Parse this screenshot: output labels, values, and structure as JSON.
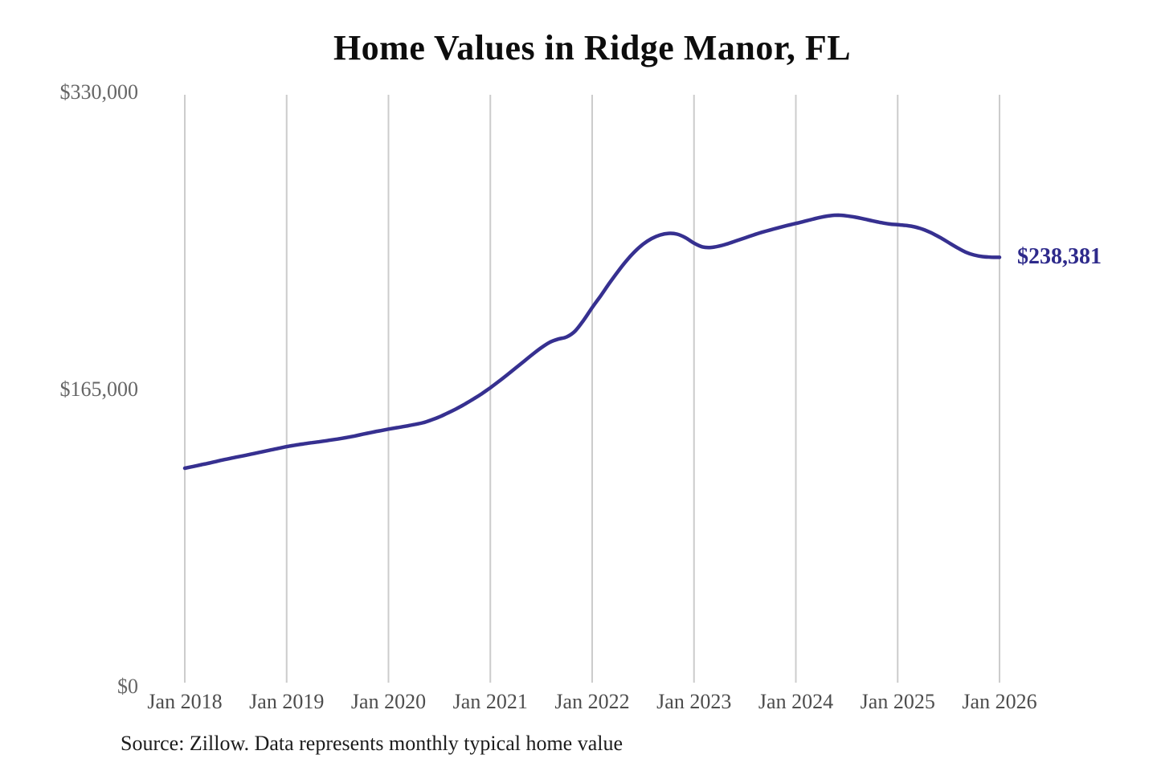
{
  "title": "Home Values in Ridge Manor, FL",
  "end_label": "$238,381",
  "source_note": "Source: Zillow. Data represents monthly typical home value",
  "colors": {
    "line": "#363090",
    "end_label": "#2e2a8b",
    "gridline": "#cccccc",
    "y_tick_label": "#666666",
    "x_tick_label": "#4d4d4d",
    "title": "#0d0d0d",
    "source": "#1c1c1c",
    "background": "#ffffff"
  },
  "chart_data": {
    "type": "line",
    "title": "Home Values in Ridge Manor, FL",
    "series_name": "Typical home value (monthly)",
    "x_start": "Jan 2018",
    "x_end": "Jan 2026",
    "frequency": "monthly",
    "x_tick_labels": [
      "Jan 2018",
      "Jan 2019",
      "Jan 2020",
      "Jan 2021",
      "Jan 2022",
      "Jan 2023",
      "Jan 2024",
      "Jan 2025",
      "Jan 2026"
    ],
    "y_tick_labels": [
      "$0",
      "$165,000",
      "$330,000"
    ],
    "y_ticks": [
      0,
      165000,
      330000
    ],
    "ylim": [
      0,
      330000
    ],
    "grid": "vertical-only",
    "legend": "none",
    "last_value": 238381,
    "last_value_label": "$238,381",
    "values": [
      121300,
      122300,
      123300,
      124300,
      125400,
      126400,
      127400,
      128300,
      129300,
      130300,
      131300,
      132300,
      133300,
      134100,
      134800,
      135500,
      136100,
      136800,
      137500,
      138300,
      139200,
      140200,
      141200,
      142100,
      143000,
      143800,
      144600,
      145500,
      146500,
      148000,
      149800,
      152000,
      154300,
      156900,
      159700,
      162700,
      166000,
      169500,
      173200,
      177000,
      180800,
      184600,
      188200,
      191200,
      193000,
      194200,
      197500,
      203500,
      210500,
      217000,
      223800,
      230300,
      236300,
      241500,
      245700,
      248800,
      250800,
      251700,
      251300,
      249300,
      246300,
      244200,
      243900,
      244700,
      246000,
      247600,
      249200,
      250800,
      252300,
      253600,
      254900,
      256100,
      257200,
      258400,
      259600,
      260700,
      261500,
      261800,
      261400,
      260700,
      259700,
      258700,
      257700,
      256900,
      256500,
      256100,
      255300,
      253900,
      251900,
      249400,
      246600,
      243800,
      241300,
      239700,
      238800,
      238500,
      238381
    ]
  }
}
